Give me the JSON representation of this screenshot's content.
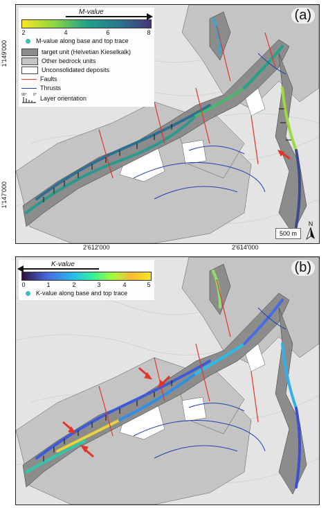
{
  "panel_a": {
    "label": "(a)",
    "colorbar_title": "M-value",
    "colorbar_ticks": [
      "2",
      "4",
      "6",
      "8"
    ],
    "legend": {
      "trace": "M-value along base and top trace",
      "target": "target unit (Helvetian Kieselkalk)",
      "bedrock": "Other bedrock units",
      "unconsolidated": "Unconsolidated deposits",
      "faults": "Faults",
      "thrusts": "Thrusts",
      "orientation": "Layer orientation",
      "orientation_min": "90°",
      "orientation_max": "0°"
    },
    "y_ticks": [
      "1'149'000",
      "1'147'000"
    ],
    "x_ticks": [
      "2'612'000",
      "2'614'000"
    ],
    "scale_bar": "500 m",
    "north": "N"
  },
  "panel_b": {
    "label": "(b)",
    "colorbar_title": "K-value",
    "colorbar_ticks": [
      "0",
      "1",
      "2",
      "3",
      "4",
      "5"
    ],
    "legend": {
      "trace": "K-value along base and top trace"
    }
  },
  "colors": {
    "target_unit": "#8c8c8c",
    "other_bedrock": "#c4c4c4",
    "unconsolidated": "#ffffff",
    "faults": "#e3342b",
    "thrusts": "#1f3fb3",
    "hillshade": "#e6e6e6"
  }
}
